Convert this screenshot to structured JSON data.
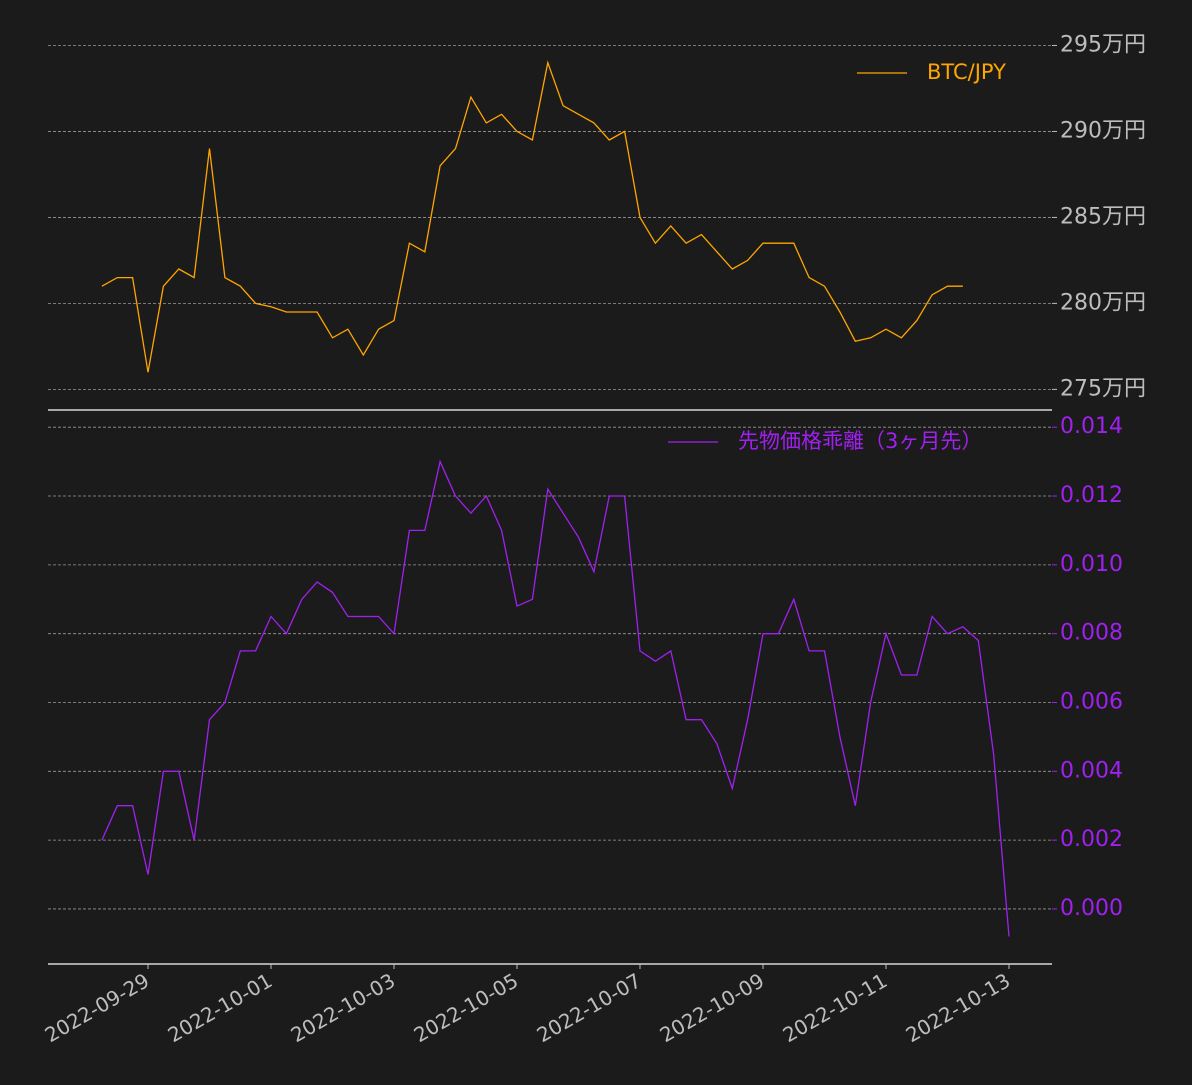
{
  "chart_data": [
    {
      "type": "line",
      "categories": [
        null,
        null,
        null,
        "2022-09-29",
        null,
        null,
        null,
        null,
        null,
        null,
        null,
        "2022-10-01",
        null,
        null,
        null,
        null,
        null,
        null,
        null,
        "2022-10-03",
        null,
        null,
        null,
        null,
        null,
        null,
        null,
        "2022-10-05",
        null,
        null,
        null,
        null,
        null,
        null,
        null,
        "2022-10-07",
        null,
        null,
        null,
        null,
        null,
        null,
        null,
        "2022-10-09",
        null,
        null,
        null,
        null,
        null,
        null,
        null,
        "2022-10-11",
        null,
        null,
        null,
        null,
        null,
        null,
        null,
        "2022-10-13"
      ],
      "series": [
        {
          "name": "BTC/JPY",
          "color": "#ffa500",
          "values": [
            281,
            281.5,
            281.5,
            276,
            281,
            282,
            281.5,
            289,
            281.5,
            281,
            280,
            279.8,
            279.5,
            279.5,
            279.5,
            278,
            278.5,
            277,
            278.5,
            279,
            283.5,
            283,
            288,
            289,
            292,
            290.5,
            291,
            290,
            289.5,
            294,
            291.5,
            291,
            290.5,
            289.5,
            290,
            285,
            283.5,
            284.5,
            283.5,
            284,
            283,
            282,
            282.5,
            283.5,
            283.5,
            283.5,
            281.5,
            281,
            279.5,
            277.8,
            278,
            278.5,
            278,
            279,
            280.5,
            281,
            281,
            null,
            null,
            null
          ]
        }
      ],
      "ylim": [
        273.8,
        295.9
      ],
      "yticks": [
        {
          "value": 275,
          "label": "275万円"
        },
        {
          "value": 280,
          "label": "280万円"
        },
        {
          "value": 285,
          "label": "285万円"
        },
        {
          "value": 290,
          "label": "290万円"
        },
        {
          "value": 295,
          "label": "295万円"
        }
      ],
      "grid": true,
      "legend": "upper right"
    },
    {
      "type": "line",
      "categories": [
        null,
        null,
        null,
        "2022-09-29",
        null,
        null,
        null,
        null,
        null,
        null,
        null,
        "2022-10-01",
        null,
        null,
        null,
        null,
        null,
        null,
        null,
        "2022-10-03",
        null,
        null,
        null,
        null,
        null,
        null,
        null,
        "2022-10-05",
        null,
        null,
        null,
        null,
        null,
        null,
        null,
        "2022-10-07",
        null,
        null,
        null,
        null,
        null,
        null,
        null,
        "2022-10-09",
        null,
        null,
        null,
        null,
        null,
        null,
        null,
        "2022-10-11",
        null,
        null,
        null,
        null,
        null,
        null,
        null,
        "2022-10-13"
      ],
      "series": [
        {
          "name": "先物価格乖離（3ヶ月先）",
          "color": "#a020f0",
          "values": [
            0.002,
            0.003,
            0.003,
            0.001,
            0.004,
            0.004,
            0.002,
            0.0055,
            0.006,
            0.0075,
            0.0075,
            0.0085,
            0.008,
            0.009,
            0.0095,
            0.0092,
            0.0085,
            0.0085,
            0.0085,
            0.008,
            0.011,
            0.011,
            0.013,
            0.012,
            0.0115,
            0.012,
            0.011,
            0.0088,
            0.009,
            0.0122,
            0.0115,
            0.0108,
            0.0098,
            0.012,
            0.012,
            0.0075,
            0.0072,
            0.0075,
            0.0055,
            0.0055,
            0.0048,
            0.0035,
            0.0055,
            0.008,
            0.008,
            0.009,
            0.0075,
            0.0075,
            0.005,
            0.003,
            0.006,
            0.008,
            0.0068,
            0.0068,
            0.0085,
            0.008,
            0.0082,
            0.0078,
            0.0045,
            -0.0008
          ]
        }
      ],
      "ylim": [
        -0.0016,
        0.0145
      ],
      "yticks": [
        {
          "value": 0,
          "label": "0.000"
        },
        {
          "value": 0.002,
          "label": "0.002"
        },
        {
          "value": 0.004,
          "label": "0.004"
        },
        {
          "value": 0.006,
          "label": "0.006"
        },
        {
          "value": 0.008,
          "label": "0.008"
        },
        {
          "value": 0.01,
          "label": "0.010"
        },
        {
          "value": 0.012,
          "label": "0.012"
        },
        {
          "value": 0.014,
          "label": "0.014"
        }
      ],
      "grid": true,
      "legend": "upper right",
      "tick_color": "#a020f0"
    }
  ]
}
